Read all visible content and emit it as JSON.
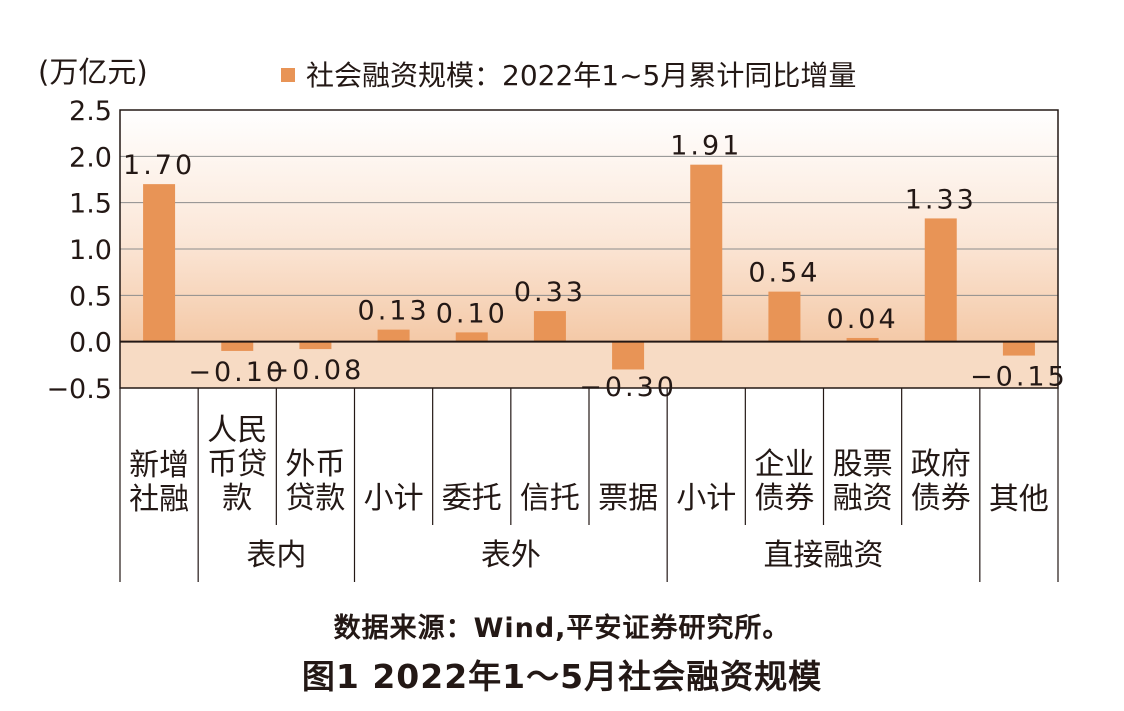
{
  "chart_data": {
    "type": "bar",
    "unit_label": "(万亿元)",
    "legend": "社会融资规模：2022年1~5月累计同比增量",
    "ylim": [
      -0.5,
      2.5
    ],
    "yticks": [
      "2.5",
      "2.0",
      "1.5",
      "1.0",
      "0.5",
      "0.0",
      "−0.5"
    ],
    "ytick_values": [
      2.5,
      2.0,
      1.5,
      1.0,
      0.5,
      0.0,
      -0.5
    ],
    "categories": [
      {
        "lines": [
          "新增",
          "社融"
        ]
      },
      {
        "lines": [
          "人民",
          "币贷",
          "款"
        ]
      },
      {
        "lines": [
          "外币",
          "贷款"
        ]
      },
      {
        "lines": [
          "小计"
        ]
      },
      {
        "lines": [
          "委托"
        ]
      },
      {
        "lines": [
          "信托"
        ]
      },
      {
        "lines": [
          "票据"
        ]
      },
      {
        "lines": [
          "小计"
        ]
      },
      {
        "lines": [
          "企业",
          "债券"
        ]
      },
      {
        "lines": [
          "股票",
          "融资"
        ]
      },
      {
        "lines": [
          "政府",
          "债券"
        ]
      },
      {
        "lines": [
          "其他"
        ]
      }
    ],
    "values": [
      1.7,
      -0.1,
      -0.08,
      0.13,
      0.1,
      0.33,
      -0.3,
      1.91,
      0.54,
      0.04,
      1.33,
      -0.15
    ],
    "value_labels": [
      "1.70",
      "−0.10",
      "−0.08",
      "0.13",
      "0.10",
      "0.33",
      "−0.30",
      "1.91",
      "0.54",
      "0.04",
      "1.33",
      "−0.15"
    ],
    "groups": [
      {
        "label": "表内",
        "from": 1,
        "to": 2
      },
      {
        "label": "表外",
        "from": 3,
        "to": 6
      },
      {
        "label": "直接融资",
        "from": 7,
        "to": 10
      }
    ],
    "bar_color": "#E89456"
  },
  "source": "数据来源：Wind,平安证券研究所。",
  "figure_title": "图1  2022年1～5月社会融资规模"
}
